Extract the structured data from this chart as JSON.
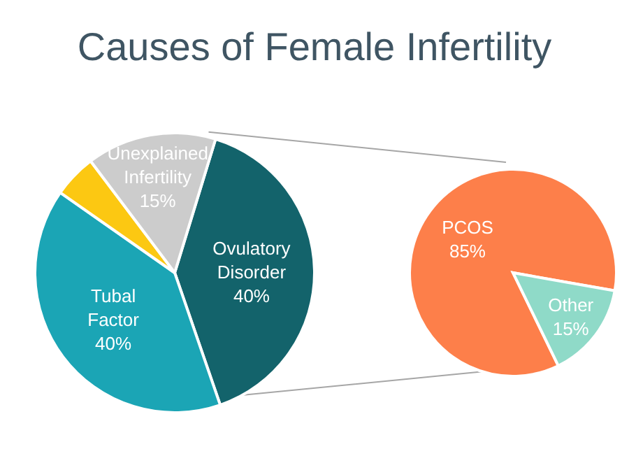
{
  "chart_data": [
    {
      "type": "pie",
      "title": "Causes of Female Infertility",
      "categories": [
        "Ovulatory Disorder",
        "Tubal Factor",
        null,
        "Unexplained Infertility"
      ],
      "values": [
        40,
        40,
        5,
        15
      ],
      "colors": [
        "#13636b",
        "#1ba5b5",
        "#fcc812",
        "#cccccc"
      ],
      "value_labels": [
        "40%",
        "40%",
        null,
        "15%"
      ],
      "legend": false
    },
    {
      "type": "pie",
      "categories": [
        "PCOS",
        "Other"
      ],
      "values": [
        85,
        15
      ],
      "colors": [
        "#fd7f4a",
        "#8fdac8"
      ],
      "value_labels": [
        "85%",
        "15%"
      ],
      "legend": false
    }
  ]
}
